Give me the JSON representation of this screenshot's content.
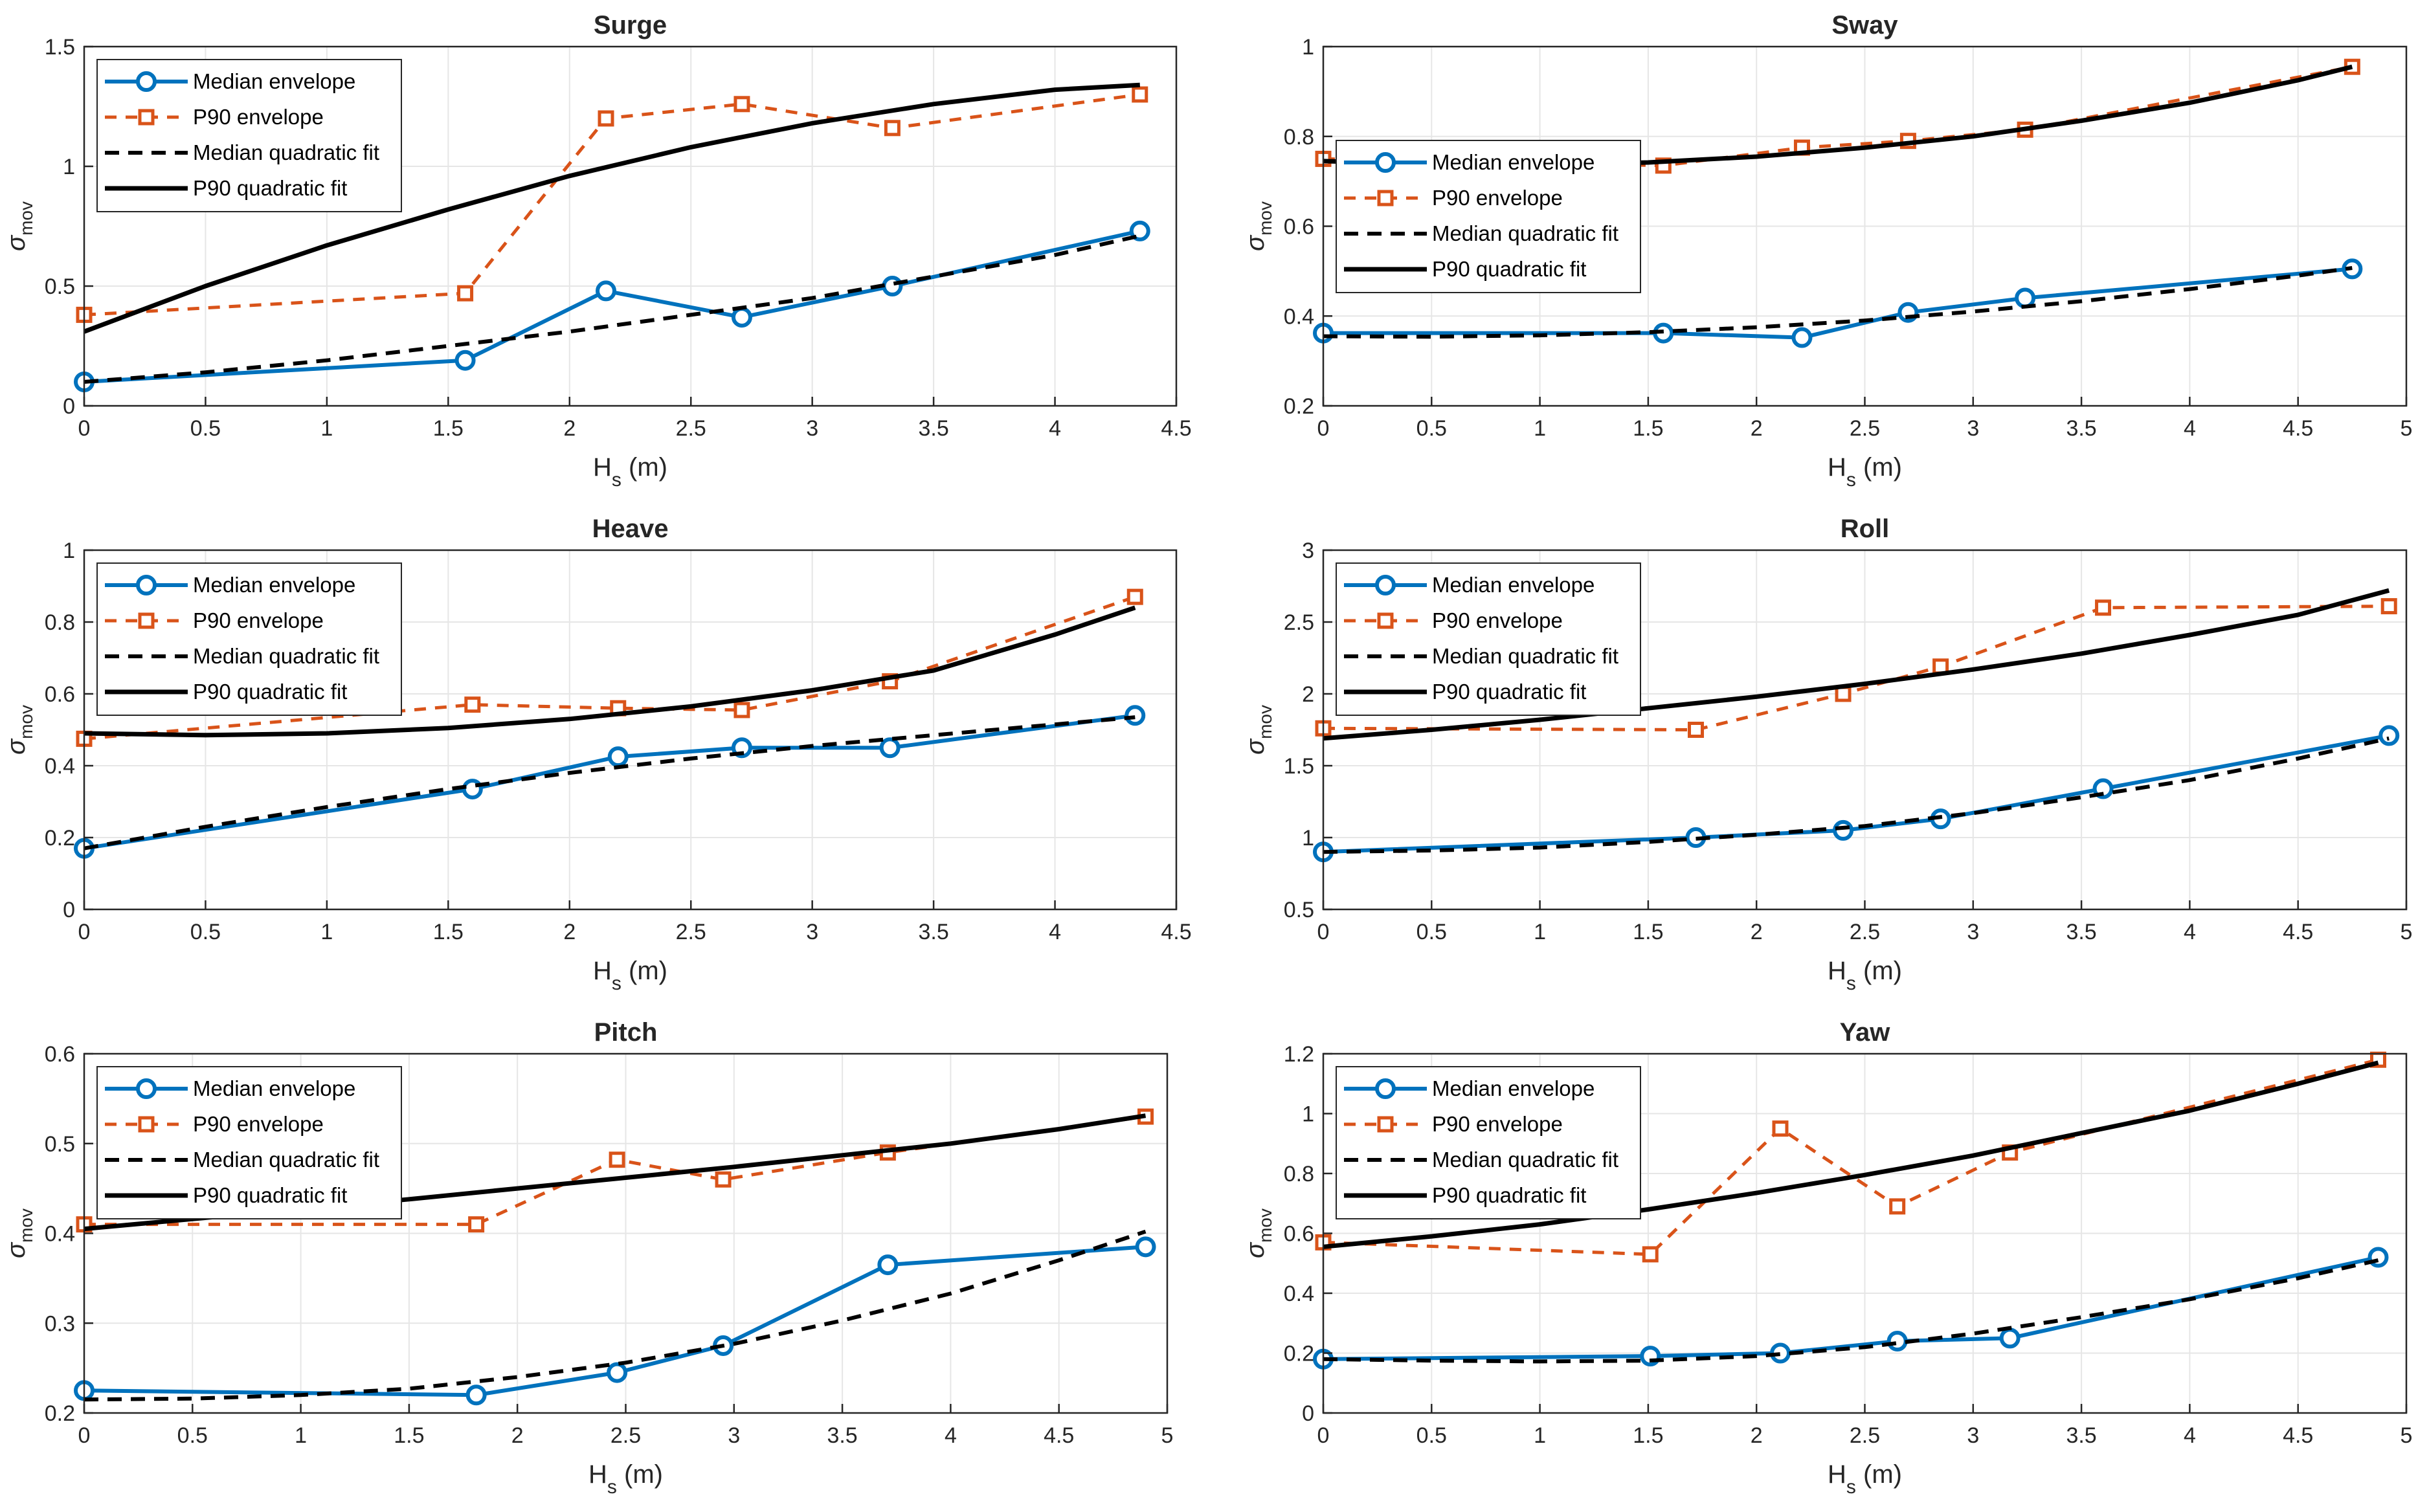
{
  "colors": {
    "median": "#0072BD",
    "p90": "#D95319",
    "fit": "#000000",
    "grid": "#e6e6e6",
    "axis": "#262626"
  },
  "legend_labels": [
    "Median envelope",
    "P90 envelope",
    "Median quadratic fit",
    "P90 quadratic fit"
  ],
  "chart_data": [
    {
      "type": "line",
      "title": "Surge",
      "xlabel": "H",
      "xlabel_sub": "s",
      "xlabel_unit": " (m)",
      "ylabel": "σ",
      "ylabel_sub": "mov",
      "xlim": [
        0,
        4.5
      ],
      "ylim": [
        0,
        1.5
      ],
      "xticks": [
        0,
        0.5,
        1,
        1.5,
        2,
        2.5,
        3,
        3.5,
        4,
        4.5
      ],
      "yticks": [
        0,
        0.5,
        1,
        1.5
      ],
      "legend_position": "top-left",
      "series": [
        {
          "name": "Median envelope",
          "style": "median",
          "x": [
            0,
            1.57,
            2.15,
            2.71,
            3.33,
            4.35
          ],
          "y": [
            0.1,
            0.19,
            0.48,
            0.37,
            0.5,
            0.73
          ]
        },
        {
          "name": "P90 envelope",
          "style": "p90",
          "x": [
            0,
            1.57,
            2.15,
            2.71,
            3.33,
            4.35
          ],
          "y": [
            0.38,
            0.47,
            1.2,
            1.26,
            1.16,
            1.3
          ]
        },
        {
          "name": "Median quadratic fit",
          "style": "fit-dashed",
          "x": [
            0,
            0.5,
            1,
            1.5,
            2,
            2.5,
            3,
            3.5,
            4,
            4.35
          ],
          "y": [
            0.1,
            0.14,
            0.19,
            0.25,
            0.31,
            0.38,
            0.45,
            0.54,
            0.63,
            0.71
          ]
        },
        {
          "name": "P90 quadratic fit",
          "style": "fit-solid",
          "x": [
            0,
            0.5,
            1,
            1.5,
            2,
            2.5,
            3,
            3.5,
            4,
            4.35
          ],
          "y": [
            0.31,
            0.5,
            0.67,
            0.82,
            0.96,
            1.08,
            1.18,
            1.26,
            1.32,
            1.34
          ]
        }
      ]
    },
    {
      "type": "line",
      "title": "Sway",
      "xlabel": "H",
      "xlabel_sub": "s",
      "xlabel_unit": " (m)",
      "ylabel": "σ",
      "ylabel_sub": "mov",
      "xlim": [
        0,
        5
      ],
      "ylim": [
        0.2,
        1
      ],
      "xticks": [
        0,
        0.5,
        1,
        1.5,
        2,
        2.5,
        3,
        3.5,
        4,
        4.5,
        5
      ],
      "yticks": [
        0.2,
        0.4,
        0.6,
        0.8,
        1
      ],
      "legend_position": "middle-left",
      "series": [
        {
          "name": "Median envelope",
          "style": "median",
          "x": [
            0,
            1.57,
            2.21,
            2.7,
            3.24,
            4.75
          ],
          "y": [
            0.362,
            0.362,
            0.352,
            0.408,
            0.44,
            0.505
          ]
        },
        {
          "name": "P90 envelope",
          "style": "p90",
          "x": [
            0,
            1.57,
            2.21,
            2.7,
            3.24,
            4.75
          ],
          "y": [
            0.75,
            0.735,
            0.775,
            0.79,
            0.815,
            0.955
          ]
        },
        {
          "name": "Median quadratic fit",
          "style": "fit-dashed",
          "x": [
            0,
            0.5,
            1,
            1.5,
            2,
            2.5,
            3,
            3.5,
            4,
            4.5,
            4.75
          ],
          "y": [
            0.355,
            0.354,
            0.357,
            0.364,
            0.375,
            0.39,
            0.41,
            0.433,
            0.46,
            0.49,
            0.507
          ]
        },
        {
          "name": "P90 quadratic fit",
          "style": "fit-solid",
          "x": [
            0,
            0.5,
            1,
            1.5,
            2,
            2.5,
            3,
            3.5,
            4,
            4.5,
            4.75
          ],
          "y": [
            0.745,
            0.738,
            0.737,
            0.742,
            0.755,
            0.775,
            0.8,
            0.835,
            0.875,
            0.925,
            0.955
          ]
        }
      ]
    },
    {
      "type": "line",
      "title": "Heave",
      "xlabel": "H",
      "xlabel_sub": "s",
      "xlabel_unit": " (m)",
      "ylabel": "σ",
      "ylabel_sub": "mov",
      "xlim": [
        0,
        4.5
      ],
      "ylim": [
        0,
        1
      ],
      "xticks": [
        0,
        0.5,
        1,
        1.5,
        2,
        2.5,
        3,
        3.5,
        4,
        4.5
      ],
      "yticks": [
        0,
        0.2,
        0.4,
        0.6,
        0.8,
        1
      ],
      "legend_position": "top-left",
      "series": [
        {
          "name": "Median envelope",
          "style": "median",
          "x": [
            0,
            1.6,
            2.2,
            2.71,
            3.32,
            4.33
          ],
          "y": [
            0.17,
            0.335,
            0.425,
            0.45,
            0.45,
            0.54
          ]
        },
        {
          "name": "P90 envelope",
          "style": "p90",
          "x": [
            0,
            1.6,
            2.2,
            2.71,
            3.32,
            4.33
          ],
          "y": [
            0.475,
            0.57,
            0.56,
            0.555,
            0.635,
            0.87
          ]
        },
        {
          "name": "Median quadratic fit",
          "style": "fit-dashed",
          "x": [
            0,
            0.5,
            1,
            1.5,
            2,
            2.5,
            3,
            3.5,
            4,
            4.33
          ],
          "y": [
            0.17,
            0.23,
            0.285,
            0.335,
            0.38,
            0.42,
            0.455,
            0.485,
            0.515,
            0.535
          ]
        },
        {
          "name": "P90 quadratic fit",
          "style": "fit-solid",
          "x": [
            0,
            0.5,
            1,
            1.5,
            2,
            2.5,
            3,
            3.5,
            4,
            4.33
          ],
          "y": [
            0.49,
            0.485,
            0.49,
            0.505,
            0.53,
            0.565,
            0.61,
            0.665,
            0.765,
            0.84
          ]
        }
      ]
    },
    {
      "type": "line",
      "title": "Roll",
      "xlabel": "H",
      "xlabel_sub": "s",
      "xlabel_unit": " (m)",
      "ylabel": "σ",
      "ylabel_sub": "mov",
      "xlim": [
        0,
        5
      ],
      "ylim": [
        0.5,
        3
      ],
      "xticks": [
        0,
        0.5,
        1,
        1.5,
        2,
        2.5,
        3,
        3.5,
        4,
        4.5,
        5
      ],
      "yticks": [
        0.5,
        1,
        1.5,
        2,
        2.5,
        3
      ],
      "legend_position": "top-left",
      "series": [
        {
          "name": "Median envelope",
          "style": "median",
          "x": [
            0,
            1.72,
            2.4,
            2.85,
            3.6,
            4.92
          ],
          "y": [
            0.9,
            1.0,
            1.05,
            1.13,
            1.34,
            1.71
          ]
        },
        {
          "name": "P90 envelope",
          "style": "p90",
          "x": [
            0,
            1.72,
            2.4,
            2.85,
            3.6,
            4.92
          ],
          "y": [
            1.76,
            1.75,
            2.0,
            2.19,
            2.6,
            2.61
          ]
        },
        {
          "name": "Median quadratic fit",
          "style": "fit-dashed",
          "x": [
            0,
            0.5,
            1,
            1.5,
            2,
            2.5,
            3,
            3.5,
            4,
            4.5,
            4.92
          ],
          "y": [
            0.9,
            0.91,
            0.93,
            0.97,
            1.02,
            1.08,
            1.17,
            1.28,
            1.4,
            1.55,
            1.69
          ]
        },
        {
          "name": "P90 quadratic fit",
          "style": "fit-solid",
          "x": [
            0,
            0.5,
            1,
            1.5,
            2,
            2.5,
            3,
            3.5,
            4,
            4.5,
            4.92
          ],
          "y": [
            1.69,
            1.75,
            1.82,
            1.9,
            1.98,
            2.07,
            2.17,
            2.28,
            2.41,
            2.55,
            2.72
          ]
        }
      ]
    },
    {
      "type": "line",
      "title": "Pitch",
      "xlabel": "H",
      "xlabel_sub": "s",
      "xlabel_unit": " (m)",
      "ylabel": "σ",
      "ylabel_sub": "mov",
      "xlim": [
        0,
        5
      ],
      "ylim": [
        0.2,
        0.6
      ],
      "xticks": [
        0,
        0.5,
        1,
        1.5,
        2,
        2.5,
        3,
        3.5,
        4,
        4.5,
        5
      ],
      "yticks": [
        0.2,
        0.3,
        0.4,
        0.5,
        0.6
      ],
      "legend_position": "top-left",
      "series": [
        {
          "name": "Median envelope",
          "style": "median",
          "x": [
            0,
            1.81,
            2.46,
            2.95,
            3.71,
            4.9
          ],
          "y": [
            0.225,
            0.22,
            0.245,
            0.275,
            0.365,
            0.385
          ]
        },
        {
          "name": "P90 envelope",
          "style": "p90",
          "x": [
            0,
            1.81,
            2.46,
            2.95,
            3.71,
            4.9
          ],
          "y": [
            0.41,
            0.41,
            0.482,
            0.46,
            0.49,
            0.53
          ]
        },
        {
          "name": "Median quadratic fit",
          "style": "fit-dashed",
          "x": [
            0,
            0.5,
            1,
            1.5,
            2,
            2.5,
            3,
            3.5,
            4,
            4.5,
            4.9
          ],
          "y": [
            0.215,
            0.216,
            0.22,
            0.227,
            0.24,
            0.256,
            0.277,
            0.303,
            0.333,
            0.37,
            0.402
          ]
        },
        {
          "name": "P90 quadratic fit",
          "style": "fit-solid",
          "x": [
            0,
            0.5,
            1,
            1.5,
            2,
            2.5,
            3,
            3.5,
            4,
            4.5,
            4.9
          ],
          "y": [
            0.405,
            0.416,
            0.427,
            0.438,
            0.45,
            0.462,
            0.474,
            0.487,
            0.5,
            0.516,
            0.531
          ]
        }
      ]
    },
    {
      "type": "line",
      "title": "Yaw",
      "xlabel": "H",
      "xlabel_sub": "s",
      "xlabel_unit": " (m)",
      "ylabel": "σ",
      "ylabel_sub": "mov",
      "xlim": [
        0,
        5
      ],
      "ylim": [
        0,
        1.2
      ],
      "xticks": [
        0,
        0.5,
        1,
        1.5,
        2,
        2.5,
        3,
        3.5,
        4,
        4.5,
        5
      ],
      "yticks": [
        0,
        0.2,
        0.4,
        0.6,
        0.8,
        1,
        1.2
      ],
      "legend_position": "top-left",
      "series": [
        {
          "name": "Median envelope",
          "style": "median",
          "x": [
            0,
            1.51,
            2.11,
            2.65,
            3.17,
            4.87
          ],
          "y": [
            0.18,
            0.19,
            0.2,
            0.24,
            0.25,
            0.52
          ]
        },
        {
          "name": "P90 envelope",
          "style": "p90",
          "x": [
            0,
            1.51,
            2.11,
            2.65,
            3.17,
            4.87
          ],
          "y": [
            0.57,
            0.53,
            0.95,
            0.69,
            0.87,
            1.18
          ]
        },
        {
          "name": "Median quadratic fit",
          "style": "fit-dashed",
          "x": [
            0,
            0.5,
            1,
            1.5,
            2,
            2.5,
            3,
            3.5,
            4,
            4.5,
            4.87
          ],
          "y": [
            0.18,
            0.175,
            0.172,
            0.175,
            0.19,
            0.22,
            0.265,
            0.32,
            0.38,
            0.45,
            0.51
          ]
        },
        {
          "name": "P90 quadratic fit",
          "style": "fit-solid",
          "x": [
            0,
            0.5,
            1,
            1.5,
            2,
            2.5,
            3,
            3.5,
            4,
            4.5,
            4.87
          ],
          "y": [
            0.555,
            0.59,
            0.63,
            0.68,
            0.735,
            0.795,
            0.86,
            0.935,
            1.01,
            1.1,
            1.17
          ]
        }
      ]
    }
  ]
}
